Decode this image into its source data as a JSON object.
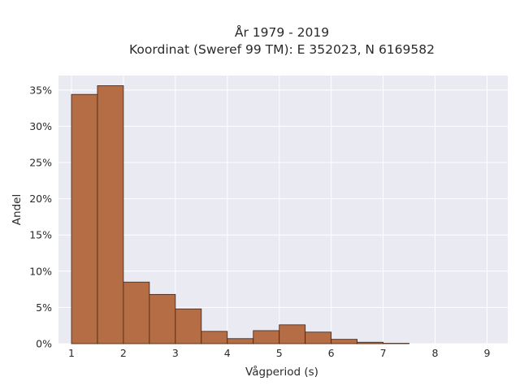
{
  "chart_data": {
    "type": "bar",
    "title_line1": "År 1979 - 2019",
    "title_line2": "Koordinat (Sweref 99 TM): E 352023, N 6169582",
    "xlabel": "Vågperiod (s)",
    "ylabel": "Andel",
    "xlim": [
      0.75,
      9.4
    ],
    "ylim": [
      0,
      37
    ],
    "x_ticks": [
      1,
      2,
      3,
      4,
      5,
      6,
      7,
      8,
      9
    ],
    "x_tick_labels": [
      "1",
      "2",
      "3",
      "4",
      "5",
      "6",
      "7",
      "8",
      "9"
    ],
    "y_ticks": [
      0,
      5,
      10,
      15,
      20,
      25,
      30,
      35
    ],
    "y_tick_labels": [
      "0%",
      "5%",
      "10%",
      "15%",
      "20%",
      "25%",
      "30%",
      "35%"
    ],
    "bin_width": 0.5,
    "bins": [
      {
        "start": 1.0,
        "value": 34.4
      },
      {
        "start": 1.5,
        "value": 35.6
      },
      {
        "start": 2.0,
        "value": 8.5
      },
      {
        "start": 2.5,
        "value": 6.8
      },
      {
        "start": 3.0,
        "value": 4.8
      },
      {
        "start": 3.5,
        "value": 1.7
      },
      {
        "start": 4.0,
        "value": 0.7
      },
      {
        "start": 4.5,
        "value": 1.8
      },
      {
        "start": 5.0,
        "value": 2.6
      },
      {
        "start": 5.5,
        "value": 1.6
      },
      {
        "start": 6.0,
        "value": 0.6
      },
      {
        "start": 6.5,
        "value": 0.2
      },
      {
        "start": 7.0,
        "value": 0.05
      }
    ],
    "grid": true,
    "colors": {
      "bar_fill": "#b56d45",
      "bar_stroke": "#3a2418",
      "plot_background": "#eaeaf2",
      "grid": "#ffffff"
    }
  }
}
